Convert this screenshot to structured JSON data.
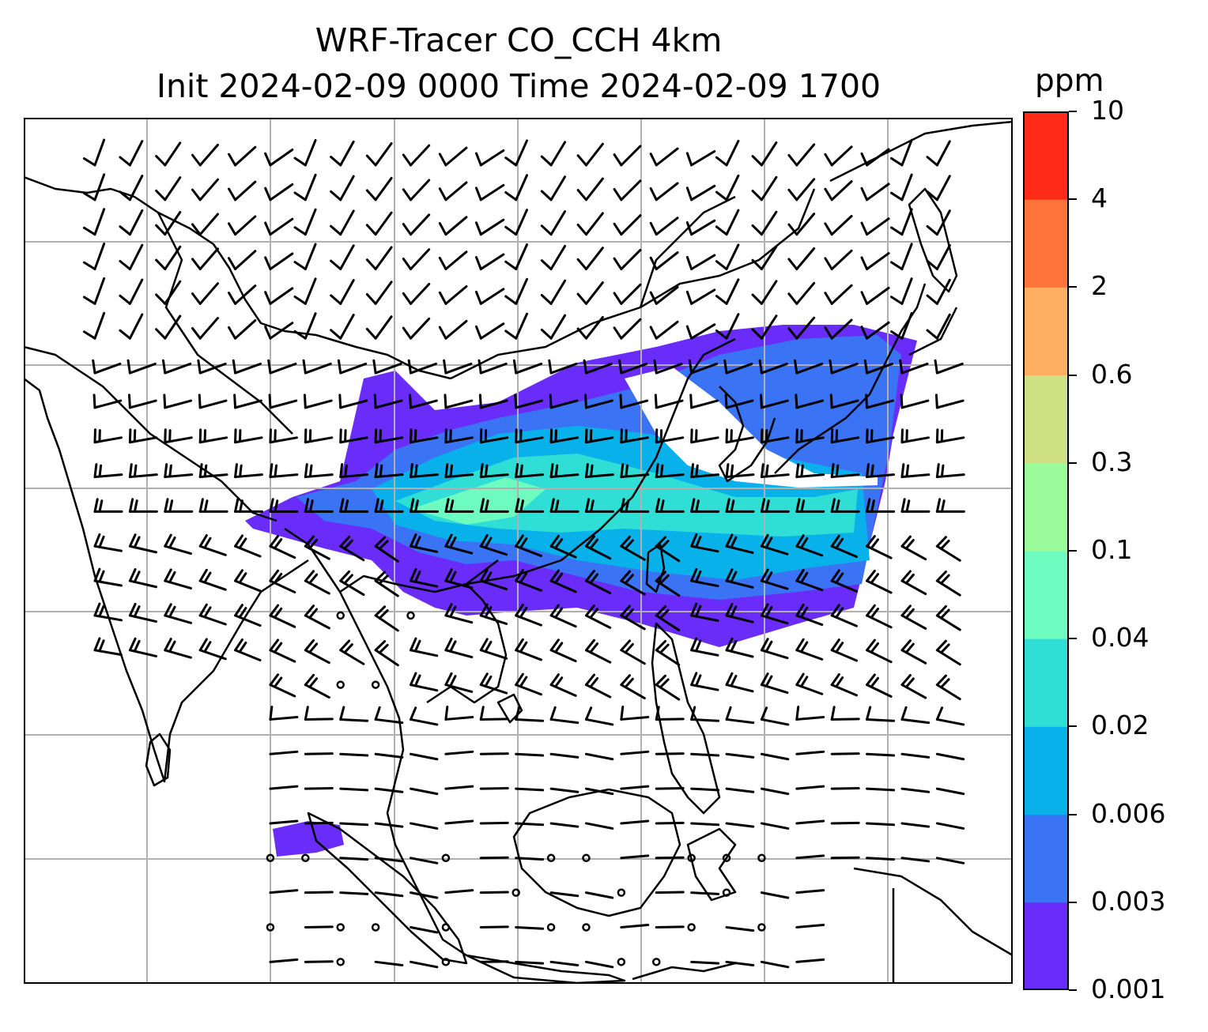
{
  "title_line1": "WRF-Tracer CO_CCH 4km",
  "title_line2": "Init 2024-02-09 0000 Time 2024-02-09 1700",
  "colorbar": {
    "unit": "ppm",
    "levels": [
      "0.001",
      "0.003",
      "0.006",
      "0.02",
      "0.04",
      "0.1",
      "0.3",
      "0.6",
      "2",
      "4",
      "10"
    ],
    "colors": [
      "#6a2cf9",
      "#3b73f5",
      "#08b1ea",
      "#2fdfd6",
      "#6dfbc0",
      "#9bfb9a",
      "#cfe084",
      "#ffaf5f",
      "#ff7439",
      "#ff2b17"
    ]
  },
  "map": {
    "gridline_color": "#b0b0b0",
    "coastline_color": "#000000",
    "wind_barb_color": "#000000"
  }
}
